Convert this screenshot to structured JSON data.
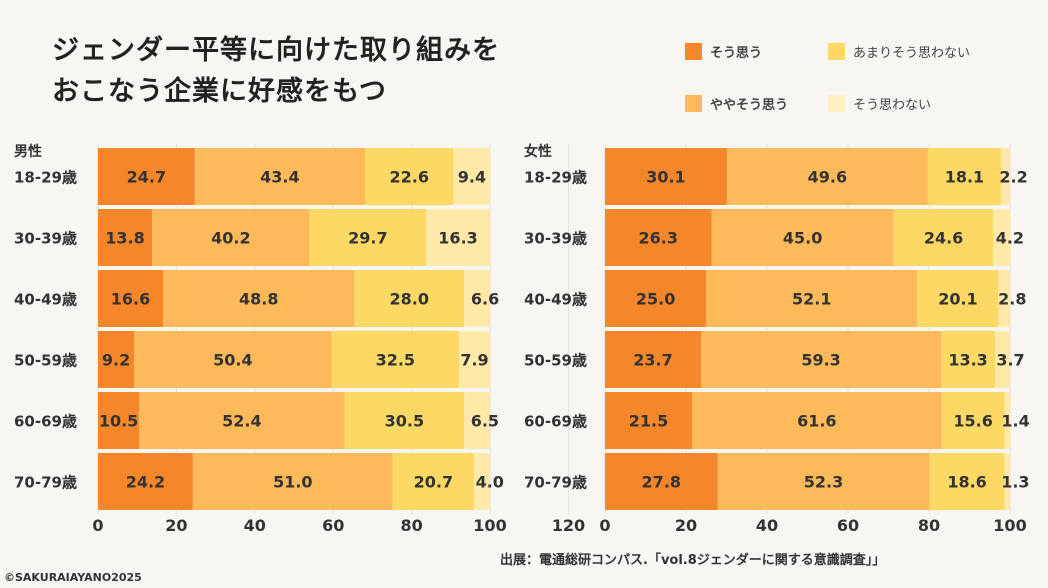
{
  "title_lines": [
    "ジェンダー平等に向けた取り組みを",
    "おこなう企業に好感をもつ"
  ],
  "source": "出展：電通総研コンパス.「vol.8ジェンダーに関する意識調査」」",
  "copyright": "©SAKURAIAYANO2025",
  "chart_data": [
    {
      "type": "bar",
      "orientation": "horizontal",
      "stacked": true,
      "title": "男性",
      "categories": [
        "18-29歳",
        "30-39歳",
        "40-49歳",
        "50-59歳",
        "60-69歳",
        "70-79歳"
      ],
      "xlim": [
        0,
        120
      ],
      "xticks": [
        0,
        20,
        40,
        60,
        80,
        100,
        120
      ],
      "series": [
        {
          "name": "そう思う",
          "color": "#F5862A",
          "values": [
            24.7,
            13.8,
            16.6,
            9.2,
            10.5,
            24.2
          ]
        },
        {
          "name": "ややそう思う",
          "color": "#FDB95A",
          "values": [
            43.4,
            40.2,
            48.8,
            50.4,
            52.4,
            51.0
          ]
        },
        {
          "name": "あまりそう思わない",
          "color": "#FCD865",
          "values": [
            22.6,
            29.7,
            28.0,
            32.5,
            30.5,
            20.7
          ]
        },
        {
          "name": "そう思わない",
          "color": "#FFE9A8",
          "values": [
            9.4,
            16.3,
            6.6,
            7.9,
            6.5,
            4.0
          ]
        }
      ]
    },
    {
      "type": "bar",
      "orientation": "horizontal",
      "stacked": true,
      "title": "女性",
      "categories": [
        "18-29歳",
        "30-39歳",
        "40-49歳",
        "50-59歳",
        "60-69歳",
        "70-79歳"
      ],
      "xlim": [
        0,
        100
      ],
      "xticks": [
        0,
        20,
        40,
        60,
        80,
        100
      ],
      "series": [
        {
          "name": "そう思う",
          "color": "#F5862A",
          "values": [
            30.1,
            26.3,
            25.0,
            23.7,
            21.5,
            27.8
          ]
        },
        {
          "name": "ややそう思う",
          "color": "#FDB95A",
          "values": [
            49.6,
            45.0,
            52.1,
            59.3,
            61.6,
            52.3
          ]
        },
        {
          "name": "あまりそう思わない",
          "color": "#FCD865",
          "values": [
            18.1,
            24.6,
            20.1,
            13.3,
            15.6,
            18.6
          ]
        },
        {
          "name": "そう思わない",
          "color": "#FFE9A8",
          "values": [
            2.2,
            4.2,
            2.8,
            3.7,
            1.4,
            1.3
          ]
        }
      ]
    }
  ],
  "legend": [
    {
      "label": "そう思う",
      "color": "#F5862A"
    },
    {
      "label": "あまりそう思わない",
      "color": "#FCD865"
    },
    {
      "label": "ややそう思う",
      "color": "#FDB95A"
    },
    {
      "label": "そう思わない",
      "color": "#FFE9A8"
    }
  ]
}
